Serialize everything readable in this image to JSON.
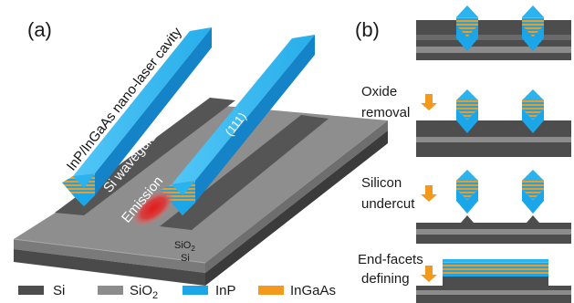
{
  "panel_a": {
    "label": "(a)",
    "cavity_label": "InP/InGaAs nano-laser cavity",
    "waveguide_label": "Si waveguide",
    "emission_label": "Emission",
    "facet_label": "(111)",
    "sio2_label_main": "SiO",
    "sio2_label_sub": "2",
    "si_label": "Si"
  },
  "panel_b": {
    "label": "(b)",
    "step1_line1": "Oxide",
    "step1_line2": "removal",
    "step2_line1": "Silicon",
    "step2_line2": "undercut",
    "step3_line1": "End-facets",
    "step3_line2": "defining"
  },
  "legend": {
    "si": "Si",
    "sio2_main": "SiO",
    "sio2_sub": "2",
    "inp": "InP",
    "ingaas": "InGaAs"
  },
  "colors": {
    "si": "#4d4d4d",
    "sio2": "#8c8c8c",
    "inp": "#1aa6e8",
    "ingaas": "#f39a1e"
  }
}
